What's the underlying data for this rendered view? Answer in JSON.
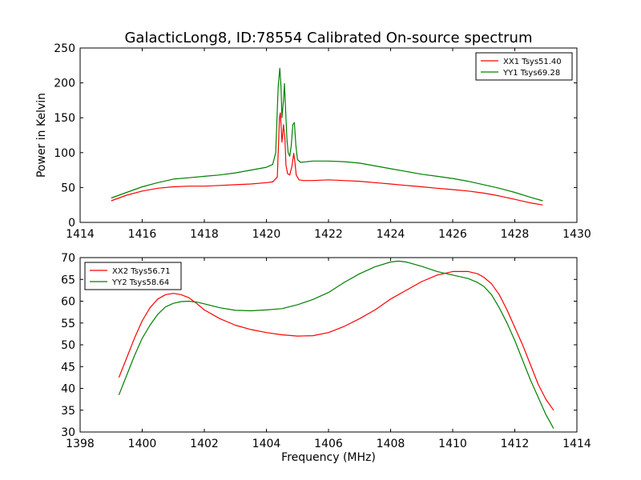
{
  "figure": {
    "title": "GalacticLong8, ID:78554 Calibrated On-source spectrum"
  },
  "chart_data": [
    {
      "type": "line",
      "ylabel": "Power in Kelvin",
      "xlabel": "",
      "xlim": [
        1414,
        1430
      ],
      "ylim": [
        0,
        250
      ],
      "xticks": [
        1414,
        1416,
        1418,
        1420,
        1422,
        1424,
        1426,
        1428,
        1430
      ],
      "yticks": [
        0,
        50,
        100,
        150,
        200,
        250
      ],
      "legend_position": "top-right",
      "series": [
        {
          "name": "XX1 Tsys51.40",
          "color": "#ff0000",
          "x": [
            1415.0,
            1415.5,
            1416.0,
            1416.5,
            1417.0,
            1417.5,
            1418.0,
            1418.5,
            1419.0,
            1419.5,
            1420.0,
            1420.2,
            1420.35,
            1420.42,
            1420.45,
            1420.5,
            1420.55,
            1420.6,
            1420.63,
            1420.68,
            1420.75,
            1420.82,
            1420.88,
            1420.92,
            1420.96,
            1421.05,
            1421.2,
            1421.5,
            1422.0,
            1422.5,
            1423.0,
            1423.5,
            1424.0,
            1424.5,
            1425.0,
            1425.5,
            1426.0,
            1426.5,
            1427.0,
            1427.5,
            1428.0,
            1428.5,
            1428.9
          ],
          "y": [
            31,
            39,
            45,
            49,
            51,
            52,
            52,
            53,
            54,
            55,
            57,
            58,
            65,
            150,
            157,
            115,
            140,
            118,
            82,
            70,
            68,
            80,
            99,
            85,
            68,
            61,
            60,
            60,
            61,
            60,
            59,
            57,
            55,
            53,
            51,
            49,
            47,
            45,
            42,
            38,
            33,
            28,
            25
          ]
        },
        {
          "name": "YY1 Tsys69.28",
          "color": "#008000",
          "x": [
            1415.0,
            1415.5,
            1416.0,
            1416.5,
            1417.0,
            1417.5,
            1418.0,
            1418.5,
            1419.0,
            1419.5,
            1420.0,
            1420.2,
            1420.3,
            1420.38,
            1420.43,
            1420.47,
            1420.5,
            1420.55,
            1420.58,
            1420.62,
            1420.66,
            1420.7,
            1420.75,
            1420.8,
            1420.85,
            1420.9,
            1420.95,
            1421.0,
            1421.1,
            1421.3,
            1421.5,
            1422.0,
            1422.5,
            1423.0,
            1423.5,
            1424.0,
            1424.5,
            1425.0,
            1425.5,
            1426.0,
            1426.5,
            1427.0,
            1427.5,
            1428.0,
            1428.5,
            1428.9
          ],
          "y": [
            35,
            43,
            51,
            57,
            62,
            64,
            66,
            68,
            71,
            75,
            79,
            83,
            100,
            195,
            221,
            195,
            150,
            175,
            199,
            160,
            120,
            100,
            95,
            110,
            140,
            143,
            110,
            90,
            86,
            87,
            88,
            88,
            87,
            85,
            81,
            77,
            73,
            69,
            66,
            63,
            59,
            54,
            49,
            43,
            36,
            31
          ]
        }
      ]
    },
    {
      "type": "line",
      "ylabel": "",
      "xlabel": "Frequency (MHz)",
      "xlim": [
        1398,
        1414
      ],
      "ylim": [
        30,
        70
      ],
      "xticks": [
        1398,
        1400,
        1402,
        1404,
        1406,
        1408,
        1410,
        1412,
        1414
      ],
      "yticks": [
        30,
        35,
        40,
        45,
        50,
        55,
        60,
        65,
        70
      ],
      "legend_position": "top-left",
      "series": [
        {
          "name": "XX2 Tsys56.71",
          "color": "#ff0000",
          "x": [
            1399.25,
            1399.5,
            1399.75,
            1400.0,
            1400.25,
            1400.5,
            1400.75,
            1401.0,
            1401.25,
            1401.5,
            1401.75,
            1402.0,
            1402.5,
            1403.0,
            1403.5,
            1404.0,
            1404.5,
            1405.0,
            1405.5,
            1406.0,
            1406.5,
            1407.0,
            1407.5,
            1408.0,
            1408.5,
            1409.0,
            1409.5,
            1410.0,
            1410.5,
            1410.8,
            1411.0,
            1411.25,
            1411.5,
            1411.75,
            1412.0,
            1412.25,
            1412.5,
            1412.75,
            1413.0,
            1413.25
          ],
          "y": [
            42.5,
            47,
            51.5,
            55.5,
            58.5,
            60.5,
            61.5,
            61.8,
            61.5,
            60.8,
            59.5,
            58,
            56,
            54.5,
            53.5,
            52.8,
            52.3,
            52,
            52.1,
            52.8,
            54.2,
            56,
            58,
            60.5,
            62.5,
            64.5,
            66,
            66.8,
            66.8,
            66.3,
            65.5,
            64,
            61.5,
            58,
            54,
            50,
            45.5,
            41,
            37.5,
            35
          ]
        },
        {
          "name": "YY2 Tsys58.64",
          "color": "#008000",
          "x": [
            1399.25,
            1399.5,
            1399.75,
            1400.0,
            1400.25,
            1400.5,
            1400.75,
            1401.0,
            1401.25,
            1401.5,
            1401.75,
            1402.0,
            1402.5,
            1403.0,
            1403.5,
            1404.0,
            1404.5,
            1405.0,
            1405.5,
            1406.0,
            1406.5,
            1407.0,
            1407.5,
            1408.0,
            1408.25,
            1408.5,
            1409.0,
            1409.5,
            1410.0,
            1410.5,
            1410.8,
            1411.0,
            1411.25,
            1411.5,
            1411.75,
            1412.0,
            1412.25,
            1412.5,
            1412.75,
            1413.0,
            1413.25
          ],
          "y": [
            38.5,
            43,
            47.5,
            51.5,
            54.5,
            57,
            58.7,
            59.5,
            59.9,
            60,
            59.8,
            59.4,
            58.5,
            57.9,
            57.8,
            58,
            58.3,
            59.2,
            60.4,
            62,
            64.3,
            66.3,
            67.9,
            69,
            69.2,
            69,
            68,
            66.8,
            66,
            65.2,
            64.3,
            63.4,
            61.5,
            58.5,
            55,
            51,
            46.5,
            42,
            38,
            34,
            30.8
          ]
        }
      ]
    }
  ]
}
